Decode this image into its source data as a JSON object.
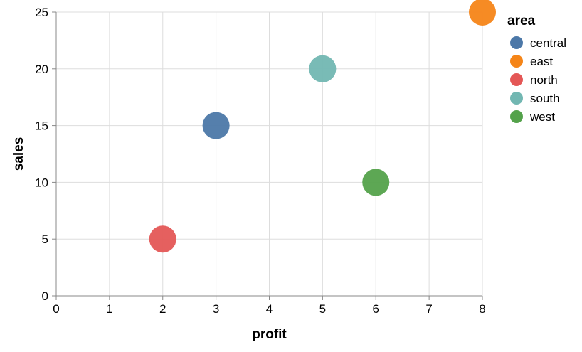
{
  "chart_data": {
    "type": "scatter",
    "xlabel": "profit",
    "ylabel": "sales",
    "xlim": [
      0,
      8
    ],
    "ylim": [
      0,
      25
    ],
    "x_ticks": [
      0,
      1,
      2,
      3,
      4,
      5,
      6,
      7,
      8
    ],
    "y_ticks": [
      0,
      5,
      10,
      15,
      20,
      25
    ],
    "grid": true,
    "legend": {
      "title": "area",
      "placement": "right",
      "entries": [
        {
          "name": "central",
          "color": "#4c78a8"
        },
        {
          "name": "east",
          "color": "#f58518"
        },
        {
          "name": "north",
          "color": "#e45756"
        },
        {
          "name": "south",
          "color": "#72b7b2"
        },
        {
          "name": "west",
          "color": "#54a24b"
        }
      ]
    },
    "points": [
      {
        "area": "central",
        "x": 3,
        "y": 15
      },
      {
        "area": "east",
        "x": 8,
        "y": 25
      },
      {
        "area": "north",
        "x": 2,
        "y": 5
      },
      {
        "area": "south",
        "x": 5,
        "y": 20
      },
      {
        "area": "west",
        "x": 6,
        "y": 10
      }
    ]
  }
}
